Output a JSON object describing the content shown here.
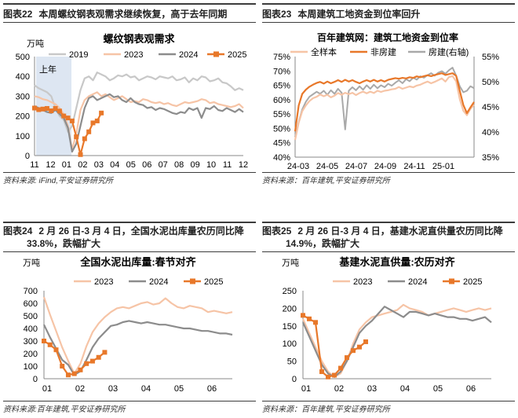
{
  "panels": {
    "p22": {
      "label": "图表22",
      "title": "本周螺纹钢表观需求继续恢复，高于去年同期",
      "source": "资料来源: iFind,平安证券研究所"
    },
    "p23": {
      "label": "图表23",
      "title": "本周建筑工地资金到位率回升",
      "source": "资料来源：百年建筑,平安证券研究所"
    },
    "p24": {
      "label": "图表24",
      "title_line1": "2 月 26 日-3 月 4 日，全国水泥出库量农历同比降",
      "title_line2": "33.8%，跌幅扩大",
      "source": "资料来源:百年建筑,平安证券研究所"
    },
    "p25": {
      "label": "图表25",
      "title_line1": "2 月 26 日-3 月 4 日，基建水泥直供量农历同比降",
      "title_line2": "14.9%，跌幅扩大",
      "source": "资料来源：百年建筑,平安证券研究所"
    }
  },
  "colors": {
    "c2019": "#c8c8c8",
    "c2023": "#f6c4a6",
    "c2024": "#8c8c8c",
    "c2025": "#e8782a",
    "dark_orange": "#e8782a",
    "light_orange": "#f6c4a6",
    "gray": "#a9a9a9",
    "shade": "#dde6f2"
  },
  "chart_data": [
    {
      "type": "line",
      "title": "螺纹钢表观需求",
      "unit_label": "万吨",
      "annotation": "上年",
      "x_ticks": [
        "11",
        "12",
        "01",
        "02",
        "03",
        "04",
        "05",
        "06",
        "07",
        "08",
        "09",
        "10",
        "11",
        "12"
      ],
      "ylim": [
        0,
        500
      ],
      "y_ticks": [
        0,
        100,
        200,
        300,
        400,
        500
      ],
      "legend": [
        "2019",
        "2023",
        "2024",
        "2025"
      ],
      "series": [
        {
          "name": "2019",
          "values": [
            355,
            340,
            330,
            320,
            300,
            240,
            200,
            180,
            120,
            150,
            240,
            330,
            390,
            400,
            380,
            420,
            410,
            400,
            380,
            390,
            405,
            400,
            410,
            395,
            400,
            380,
            390,
            400,
            395,
            385,
            400,
            395,
            390,
            400,
            380,
            385,
            395,
            370,
            390,
            380,
            400,
            395,
            375,
            380,
            390,
            370,
            365,
            350,
            330,
            340,
            330
          ]
        },
        {
          "name": "2023",
          "values": [
            300,
            295,
            285,
            280,
            270,
            260,
            240,
            210,
            150,
            30,
            110,
            230,
            280,
            300,
            310,
            320,
            300,
            310,
            295,
            280,
            290,
            300,
            285,
            270,
            275,
            270,
            285,
            280,
            270,
            265,
            270,
            260,
            265,
            255,
            250,
            260,
            270,
            265,
            270,
            275,
            285,
            280,
            265,
            270,
            260,
            255,
            250,
            245,
            250,
            260,
            240
          ]
        },
        {
          "name": "2024",
          "values": [
            250,
            240,
            230,
            220,
            215,
            230,
            210,
            190,
            140,
            20,
            60,
            150,
            240,
            290,
            300,
            280,
            290,
            300,
            310,
            295,
            300,
            280,
            270,
            290,
            270,
            260,
            255,
            240,
            245,
            230,
            240,
            235,
            225,
            215,
            210,
            220,
            215,
            240,
            230,
            240,
            190,
            240,
            235,
            250,
            230,
            225,
            240,
            230,
            220,
            235,
            220
          ]
        },
        {
          "name": "2025",
          "values": [
            240,
            232,
            235,
            238,
            226,
            238,
            225,
            200,
            190,
            175,
            95,
            5,
            85,
            120,
            165,
            175,
            215
          ]
        }
      ]
    },
    {
      "type": "line",
      "title": "百年建筑网：建筑工地资金到位率",
      "x_ticks": [
        "24-03",
        "24-05",
        "24-07",
        "24-09",
        "24-11",
        "25-01"
      ],
      "ylim": [
        40,
        75
      ],
      "y_ticks_left": [
        "40%",
        "45%",
        "50%",
        "55%",
        "60%",
        "65%",
        "70%",
        "75%"
      ],
      "y_ticks_right": [
        "35%",
        "40%",
        "45%",
        "50%",
        "55%"
      ],
      "ylim_right": [
        35,
        55
      ],
      "legend": [
        "全样本",
        "非房建",
        "房建(右轴)"
      ],
      "series": [
        {
          "name": "全样本",
          "axis": "left",
          "values": [
            46,
            52,
            56,
            58,
            59.5,
            60.5,
            61,
            61.8,
            61.2,
            61.7,
            60.8,
            61.4,
            62.3,
            61.7,
            62.4,
            61.9,
            62.4,
            61.6,
            62.3,
            62.8,
            62.2,
            62.8,
            62.3,
            63.1,
            62.7,
            63.1,
            63.3,
            63.6,
            63.8,
            64.4,
            63.8,
            64.2,
            64.6,
            64.3,
            64.9,
            65.2,
            65.8,
            66.3,
            65.7,
            66.2,
            66.8,
            67.4,
            66.3,
            67.9,
            68.2,
            66.4,
            60.2,
            56.2,
            54.6,
            56.8,
            58.2
          ]
        },
        {
          "name": "非房建",
          "axis": "left",
          "values": [
            49,
            58,
            62,
            63.5,
            64.5,
            65.2,
            65.8,
            66.2,
            65.6,
            66.3,
            65.7,
            66.2,
            66.8,
            66.2,
            66.9,
            66.3,
            66.8,
            66.2,
            65.7,
            66.3,
            66.8,
            66.3,
            66.9,
            66.3,
            66.8,
            66.3,
            66.9,
            67.2,
            67.5,
            67.3,
            67.6,
            67.4,
            67.8,
            67.6,
            68.1,
            67.8,
            68.2,
            68.5,
            68.2,
            68.6,
            68.9,
            69.2,
            68.6,
            68.9,
            69.2,
            68.3,
            63.1,
            58.2,
            55.3,
            57.3,
            59.2
          ]
        },
        {
          "name": "房建(右轴)",
          "axis": "right",
          "values": [
            39,
            42,
            44.5,
            46,
            47,
            47.5,
            48,
            47.6,
            48.2,
            47.4,
            48.3,
            47.6,
            48.6,
            47.8,
            40.5,
            48.2,
            48.9,
            48.3,
            49.1,
            48.4,
            49.3,
            48.6,
            49.4,
            48.7,
            49.3,
            48.9,
            49.6,
            49.2,
            49.8,
            50.3,
            49.7,
            50.5,
            50.1,
            50.8,
            50.4,
            51.1,
            50.8,
            51.3,
            51.7,
            51.2,
            51.8,
            52.1,
            51.6,
            52.3,
            52.8,
            51.2,
            49.1,
            47.9,
            48.2,
            49.1,
            48.7
          ]
        }
      ]
    },
    {
      "type": "line",
      "title": "全国水泥出库量:春节对齐",
      "unit_label": "万吨",
      "x_ticks": [
        "01",
        "02",
        "03",
        "04",
        "05",
        "06"
      ],
      "ylim": [
        0,
        700
      ],
      "y_ticks": [
        0,
        100,
        200,
        300,
        400,
        500,
        600,
        700
      ],
      "legend": [
        "2023",
        "2024",
        "2025"
      ],
      "series": [
        {
          "name": "2023",
          "values": [
            650,
            510,
            380,
            250,
            140,
            40,
            120,
            260,
            370,
            440,
            490,
            530,
            560,
            570,
            560,
            580,
            600,
            610,
            590,
            600,
            640,
            600,
            570,
            560,
            580,
            570,
            560,
            530,
            540,
            530,
            520,
            530
          ]
        },
        {
          "name": "2024",
          "values": [
            430,
            330,
            240,
            150,
            110,
            30,
            60,
            150,
            250,
            320,
            370,
            420,
            430,
            450,
            460,
            450,
            440,
            450,
            440,
            430,
            430,
            420,
            410,
            400,
            400,
            390,
            380,
            380,
            370,
            360,
            360,
            350
          ]
        },
        {
          "name": "2025",
          "values": [
            300,
            270,
            230,
            100,
            30,
            40,
            70,
            120,
            140,
            170,
            210
          ]
        }
      ]
    },
    {
      "type": "line",
      "title": "基建水泥直供量:农历对齐",
      "unit_label": "万吨",
      "x_ticks": [
        "01",
        "02",
        "03",
        "04",
        "05",
        "06"
      ],
      "ylim": [
        0,
        250
      ],
      "y_ticks": [
        0,
        50,
        100,
        150,
        200,
        250
      ],
      "legend": [
        "2023",
        "2024",
        "2025"
      ],
      "series": [
        {
          "name": "2023",
          "values": [
            170,
            130,
            90,
            50,
            20,
            5,
            15,
            50,
            100,
            140,
            160,
            175,
            180,
            185,
            190,
            195,
            210,
            200,
            195,
            190,
            180,
            185,
            190,
            195,
            200,
            195,
            190,
            195,
            200,
            195,
            200
          ]
        },
        {
          "name": "2024",
          "values": [
            160,
            120,
            80,
            40,
            15,
            5,
            20,
            50,
            90,
            130,
            150,
            165,
            185,
            205,
            195,
            185,
            175,
            190,
            190,
            185,
            180,
            185,
            180,
            175,
            175,
            170,
            170,
            165,
            170,
            175,
            160
          ]
        },
        {
          "name": "2025",
          "values": [
            180,
            170,
            160,
            20,
            5,
            10,
            30,
            60,
            80,
            90,
            105
          ]
        }
      ]
    }
  ]
}
